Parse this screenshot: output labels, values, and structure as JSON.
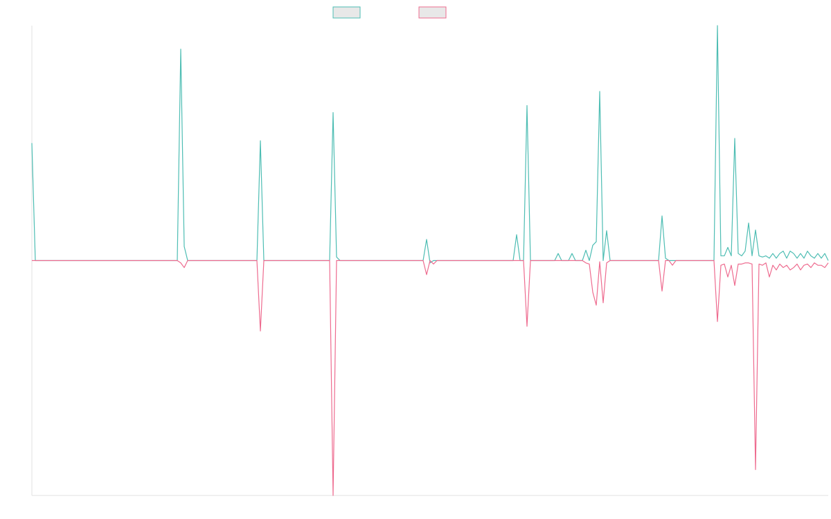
{
  "chart_data": {
    "type": "line",
    "ylim": [
      -100,
      100
    ],
    "series": [
      {
        "color": "#4dbdb3",
        "values": [
          50,
          0,
          0,
          0,
          0,
          0,
          0,
          0,
          0,
          0,
          0,
          0,
          0,
          0,
          0,
          0,
          0,
          0,
          0,
          0,
          0,
          0,
          0,
          0,
          0,
          0,
          0,
          0,
          0,
          0,
          0,
          0,
          0,
          0,
          0,
          0,
          0,
          0,
          0,
          0,
          0,
          0,
          0,
          90,
          6,
          0,
          0,
          0,
          0,
          0,
          0,
          0,
          0,
          0,
          0,
          0,
          0,
          0,
          0,
          0,
          0,
          0,
          0,
          0,
          0,
          0,
          51,
          0,
          0,
          0,
          0,
          0,
          0,
          0,
          0,
          0,
          0,
          0,
          0,
          0,
          0,
          0,
          0,
          0,
          0,
          0,
          0,
          63,
          1.5,
          0,
          0,
          0,
          0,
          0,
          0,
          0,
          0,
          0,
          0,
          0,
          0,
          0,
          0,
          0,
          0,
          0,
          0,
          0,
          0,
          0,
          0,
          0,
          0,
          0,
          9,
          -1,
          0,
          0,
          0,
          0,
          0,
          0,
          0,
          0,
          0,
          0,
          0,
          0,
          0,
          0,
          0,
          0,
          0,
          0,
          0,
          0,
          0,
          0,
          0,
          0,
          11,
          0,
          0,
          66,
          0,
          0,
          0,
          0,
          0,
          0,
          0,
          0,
          3,
          0,
          0,
          0,
          3,
          0,
          0,
          0,
          4.4,
          0,
          6.5,
          8,
          72,
          0,
          12.7,
          0,
          0,
          0,
          0,
          0,
          0,
          0,
          0,
          0,
          0,
          0,
          0,
          0,
          0,
          0,
          19,
          1,
          0,
          0,
          0,
          0,
          0,
          0,
          0,
          0,
          0,
          0,
          0,
          0,
          0,
          0,
          100,
          2,
          2,
          5.6,
          2,
          52,
          3,
          2,
          4,
          16,
          2,
          13,
          2,
          1.5,
          2,
          1,
          3,
          1,
          3,
          4,
          1,
          4,
          3,
          1,
          3,
          1,
          4,
          2,
          1,
          3,
          1,
          3,
          0
        ]
      },
      {
        "color": "#ee6b8f",
        "values": [
          0,
          0,
          0,
          0,
          0,
          0,
          0,
          0,
          0,
          0,
          0,
          0,
          0,
          0,
          0,
          0,
          0,
          0,
          0,
          0,
          0,
          0,
          0,
          0,
          0,
          0,
          0,
          0,
          0,
          0,
          0,
          0,
          0,
          0,
          0,
          0,
          0,
          0,
          0,
          0,
          0,
          0,
          0,
          -1,
          -3,
          0,
          0,
          0,
          0,
          0,
          0,
          0,
          0,
          0,
          0,
          0,
          0,
          0,
          0,
          0,
          0,
          0,
          0,
          0,
          0,
          0,
          -30,
          0,
          0,
          0,
          0,
          0,
          0,
          0,
          0,
          0,
          0,
          0,
          0,
          0,
          0,
          0,
          0,
          0,
          0,
          0,
          0,
          -100,
          0,
          0,
          0,
          0,
          0,
          0,
          0,
          0,
          0,
          0,
          0,
          0,
          0,
          0,
          0,
          0,
          0,
          0,
          0,
          0,
          0,
          0,
          0,
          0,
          0,
          0,
          -6,
          0,
          -1.5,
          0,
          0,
          0,
          0,
          0,
          0,
          0,
          0,
          0,
          0,
          0,
          0,
          0,
          0,
          0,
          0,
          0,
          0,
          0,
          0,
          0,
          0,
          0,
          0,
          0,
          0,
          -28,
          0,
          0,
          0,
          0,
          0,
          0,
          0,
          0,
          0,
          0,
          0,
          0,
          0,
          0,
          0,
          0,
          -1,
          -1.5,
          -13.5,
          -19,
          -0.5,
          -18,
          -1,
          0,
          0,
          0,
          0,
          0,
          0,
          0,
          0,
          0,
          0,
          0,
          0,
          0,
          0,
          0,
          -13,
          0,
          0,
          -2,
          0,
          0,
          0,
          0,
          0,
          0,
          0,
          0,
          0,
          0,
          0,
          0,
          -26,
          -2,
          -1.5,
          -7,
          -2,
          -10.6,
          -1.5,
          -1.5,
          -1,
          -1,
          -1.5,
          -89,
          -1.5,
          -2,
          -1,
          -7,
          -2,
          -4,
          -1.5,
          -3,
          -2,
          -4,
          -3,
          -1.5,
          -4,
          -2,
          -1.5,
          -3,
          -1,
          -2,
          -2,
          -3,
          -1
        ]
      }
    ]
  }
}
